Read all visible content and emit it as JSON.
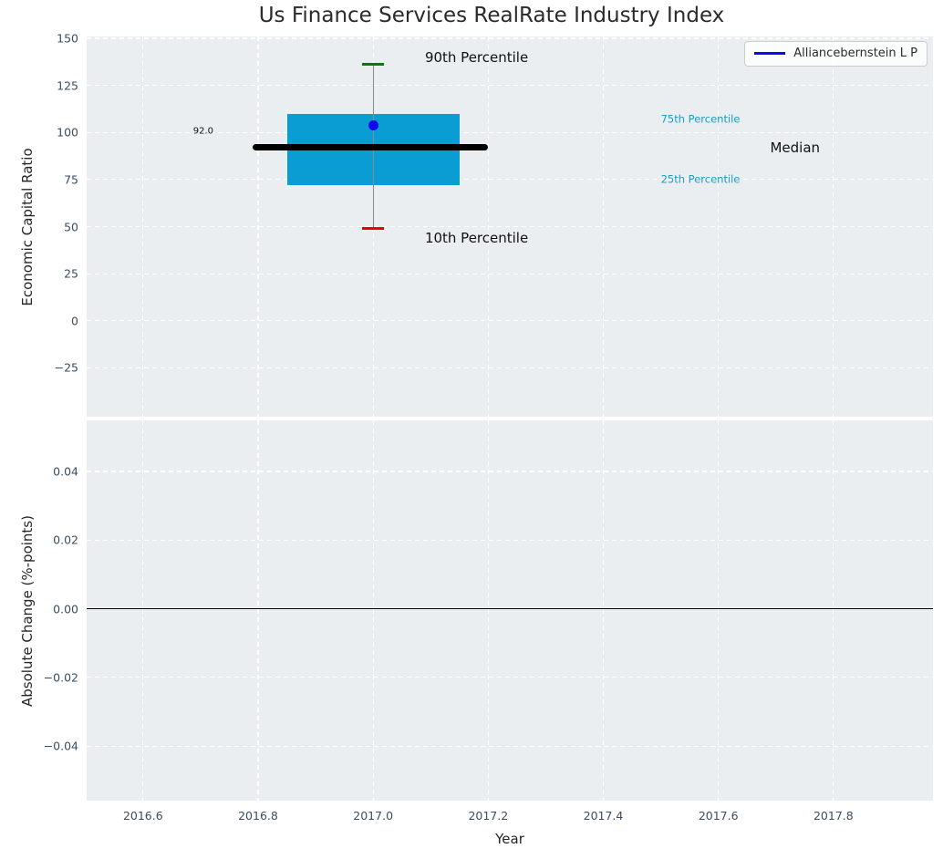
{
  "chart_data": {
    "type": "boxplot",
    "title": "Us Finance Services RealRate Industry Index",
    "legend": {
      "label": "Alliancebernstein L P"
    },
    "x_ticks": [
      {
        "v": 2016.6,
        "t": "2016.6"
      },
      {
        "v": 2016.8,
        "t": "2016.8"
      },
      {
        "v": 2017.0,
        "t": "2017.0"
      },
      {
        "v": 2017.2,
        "t": "2017.2"
      },
      {
        "v": 2017.4,
        "t": "2017.4"
      },
      {
        "v": 2017.6,
        "t": "2017.6"
      },
      {
        "v": 2017.8,
        "t": "2017.8"
      }
    ],
    "top_axes": {
      "ylabel": "Economic Capital Ratio",
      "xlim": [
        2016.502,
        2017.973
      ],
      "ylim": [
        -51,
        151
      ],
      "y_ticks": [
        {
          "v": 150,
          "t": "150"
        },
        {
          "v": 125,
          "t": "125"
        },
        {
          "v": 100,
          "t": "100"
        },
        {
          "v": 75,
          "t": "75"
        },
        {
          "v": 50,
          "t": "50"
        },
        {
          "v": 25,
          "t": "25"
        },
        {
          "v": 0,
          "t": "0"
        },
        {
          "v": -25,
          "t": "−25"
        }
      ],
      "box": {
        "x": 2017.0,
        "box_left": 2016.85,
        "box_right": 2017.15,
        "median_left": 2016.79,
        "median_right": 2017.2,
        "cap_halfwidth": 0.019,
        "p10": 49,
        "p25": 72,
        "median": 92.0,
        "p75": 110,
        "p90": 136
      },
      "company_point": {
        "x": 2017.0,
        "y": 104,
        "name": "Alliancebernstein L P"
      },
      "annotations": [
        {
          "id": "p90-label",
          "text": "90th Percentile",
          "x": 2017.09,
          "y": 140,
          "color": "#111111",
          "size": 15
        },
        {
          "id": "p10-label",
          "text": "10th Percentile",
          "x": 2017.09,
          "y": 44,
          "color": "#111111",
          "size": 15
        },
        {
          "id": "p75-label",
          "text": "75th Percentile",
          "x": 2017.5,
          "y": 107,
          "color": "#169dce",
          "size": 11.5
        },
        {
          "id": "p25-label",
          "text": "25th Percentile",
          "x": 2017.5,
          "y": 75,
          "color": "#169dce",
          "size": 11.5
        },
        {
          "id": "median-label",
          "text": "Median",
          "x": 2017.69,
          "y": 92,
          "color": "#111111",
          "size": 15
        },
        {
          "id": "median-value-label",
          "text": "92.0",
          "x": 2016.687,
          "y": 100.5,
          "color": "#111111",
          "size": 10
        }
      ]
    },
    "bottom_axes": {
      "ylabel": "Absolute Change (%-points)",
      "xlabel": "Year",
      "xlim": [
        2016.502,
        2017.973
      ],
      "ylim": [
        -0.0559,
        0.0549
      ],
      "y_ticks": [
        {
          "v": 0.04,
          "t": "0.04"
        },
        {
          "v": 0.02,
          "t": "0.02"
        },
        {
          "v": 0,
          "t": "0.00"
        },
        {
          "v": -0.02,
          "t": "−0.02"
        },
        {
          "v": -0.04,
          "t": "−0.04"
        }
      ],
      "zero_line": 0.0
    }
  },
  "colors": {
    "axes_bg": "#ebeef0",
    "grid": "#ffffff",
    "box_fill": "#099dd3",
    "median_line": "#000000",
    "whisker": "#8a8a8a",
    "cap_90": "#008000",
    "cap_10": "#ee0000",
    "company_dot": "#0b0bee",
    "legend_line": "#0b0bee",
    "percentile_label": "#169dce",
    "zero_line": "#000000",
    "tick_label": "#3b4d5f"
  }
}
